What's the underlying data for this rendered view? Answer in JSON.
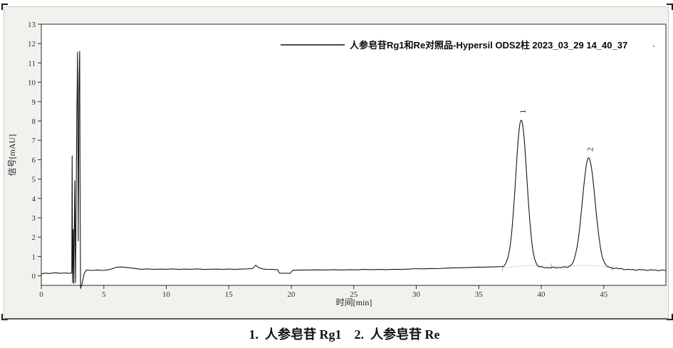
{
  "figure": {
    "caption": "1.  人参皂苷 Rg1    2.  人参皂苷 Re"
  },
  "colors": {
    "trace": "#161616",
    "integration_baseline": "#b5b5b0",
    "plot_frame": "#2a2a2a",
    "plot_background": "#ffffff",
    "container_background": "#f2f1ee",
    "tick_text": "#2e2e22"
  },
  "chart_data": {
    "type": "line",
    "subtype": "hplc-chromatogram",
    "title": "",
    "legend_label": "人参皂苷Rg1和Re对照品-Hypersil ODS2柱 2023_03_29 14_40_37",
    "legend_position": "top-center",
    "xlabel": "时间[min]",
    "ylabel": "信号[mAU]",
    "xlim": [
      0,
      50
    ],
    "ylim": [
      -0.5,
      13
    ],
    "xticks": [
      0,
      5,
      10,
      15,
      20,
      25,
      30,
      35,
      40,
      45
    ],
    "yticks": [
      0,
      1,
      2,
      3,
      4,
      5,
      6,
      7,
      8,
      9,
      10,
      11,
      12,
      13
    ],
    "grid": false,
    "peaks": [
      {
        "label": "1",
        "compound": "人参皂苷 Rg1",
        "rt_min": 38.4,
        "apex_mAU": 8.05,
        "sigma_min": 0.45
      },
      {
        "label": "2",
        "compound": "人参皂苷 Re",
        "rt_min": 43.8,
        "apex_mAU": 6.1,
        "sigma_min": 0.51
      }
    ],
    "trace_pre37_min_mAU": [
      [
        0,
        0.1
      ],
      [
        0.3,
        0.14
      ],
      [
        0.7,
        0.12
      ],
      [
        1.1,
        0.16
      ],
      [
        1.5,
        0.13
      ],
      [
        1.9,
        0.15
      ],
      [
        2.2,
        0.13
      ],
      [
        2.38,
        0.14
      ],
      [
        2.44,
        0.15
      ],
      [
        2.47,
        6.2
      ],
      [
        2.5,
        -0.35
      ],
      [
        2.56,
        2.4
      ],
      [
        2.6,
        -0.4
      ],
      [
        2.68,
        4.9
      ],
      [
        2.74,
        -0.35
      ],
      [
        2.84,
        8.1
      ],
      [
        2.9,
        11.55
      ],
      [
        2.96,
        1.8
      ],
      [
        3.02,
        10.1
      ],
      [
        3.07,
        11.6
      ],
      [
        3.1,
        5.0
      ],
      [
        3.14,
        -0.65
      ],
      [
        3.28,
        -0.35
      ],
      [
        3.42,
        0.1
      ],
      [
        3.6,
        0.3
      ],
      [
        4,
        0.28
      ],
      [
        4.5,
        0.3
      ],
      [
        5,
        0.28
      ],
      [
        5.5,
        0.33
      ],
      [
        6,
        0.44
      ],
      [
        6.4,
        0.46
      ],
      [
        7,
        0.42
      ],
      [
        7.5,
        0.38
      ],
      [
        8,
        0.34
      ],
      [
        8.5,
        0.36
      ],
      [
        9,
        0.33
      ],
      [
        9.5,
        0.35
      ],
      [
        10,
        0.34
      ],
      [
        10.5,
        0.36
      ],
      [
        11,
        0.33
      ],
      [
        11.5,
        0.35
      ],
      [
        12,
        0.34
      ],
      [
        12.5,
        0.36
      ],
      [
        13,
        0.33
      ],
      [
        13.5,
        0.34
      ],
      [
        14,
        0.35
      ],
      [
        14.5,
        0.33
      ],
      [
        15,
        0.35
      ],
      [
        15.5,
        0.33
      ],
      [
        16,
        0.35
      ],
      [
        16.5,
        0.36
      ],
      [
        16.9,
        0.38
      ],
      [
        17.15,
        0.55
      ],
      [
        17.4,
        0.42
      ],
      [
        17.7,
        0.36
      ],
      [
        18,
        0.34
      ],
      [
        18.5,
        0.33
      ],
      [
        18.9,
        0.32
      ],
      [
        19.05,
        0.14
      ],
      [
        19.9,
        0.13
      ],
      [
        20.15,
        0.29
      ],
      [
        20.8,
        0.3
      ],
      [
        21.3,
        0.3
      ],
      [
        22,
        0.31
      ],
      [
        22.7,
        0.3
      ],
      [
        23.4,
        0.32
      ],
      [
        24,
        0.3
      ],
      [
        24.6,
        0.32
      ],
      [
        25.2,
        0.31
      ],
      [
        25.8,
        0.33
      ],
      [
        26.4,
        0.32
      ],
      [
        27,
        0.33
      ],
      [
        27.6,
        0.32
      ],
      [
        28.2,
        0.34
      ],
      [
        28.8,
        0.33
      ],
      [
        29.4,
        0.35
      ],
      [
        30,
        0.37
      ],
      [
        30.6,
        0.36
      ],
      [
        31.2,
        0.38
      ],
      [
        31.8,
        0.37
      ],
      [
        32.4,
        0.4
      ],
      [
        33,
        0.41
      ],
      [
        33.6,
        0.42
      ],
      [
        34.2,
        0.43
      ],
      [
        34.8,
        0.45
      ],
      [
        35.4,
        0.45
      ],
      [
        36,
        0.46
      ],
      [
        36.5,
        0.47
      ],
      [
        37,
        0.48
      ]
    ],
    "baseline_post37_min_mAU": [
      [
        37,
        0.48
      ],
      [
        40.8,
        0.42
      ],
      [
        42,
        0.44
      ],
      [
        45.8,
        0.4
      ],
      [
        47,
        0.32
      ],
      [
        50,
        0.28
      ]
    ],
    "integration_baseline_min_mAU": [
      [
        36.9,
        0.4
      ],
      [
        38.4,
        0.52
      ],
      [
        39.5,
        0.55
      ],
      [
        40.8,
        0.5
      ],
      [
        43.8,
        0.55
      ],
      [
        45.0,
        0.48
      ],
      [
        45.7,
        0.38
      ]
    ]
  }
}
